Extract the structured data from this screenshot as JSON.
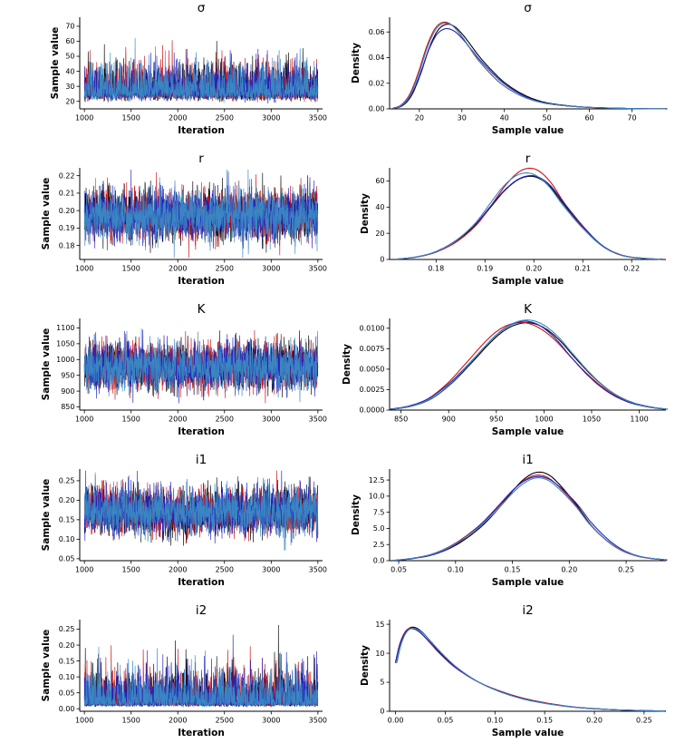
{
  "figure": {
    "background": "#ffffff",
    "chain_colors": [
      "#000000",
      "#cc1111",
      "#2222bb",
      "#3a85c2"
    ],
    "chains": 4,
    "trace_points": 1250
  },
  "chart_data": [
    {
      "param": "σ",
      "trace": {
        "type": "line",
        "title": "σ",
        "xlabel": "Iteration",
        "ylabel": "Sample value",
        "xlim": [
          950,
          3550
        ],
        "ylim": [
          15,
          76
        ],
        "xticks": [
          "1000",
          "1500",
          "2000",
          "2500",
          "3000",
          "3500"
        ],
        "yticks": [
          "20",
          "30",
          "40",
          "50",
          "60",
          "70"
        ],
        "gen": {
          "x_start": 1000,
          "x_end": 3500,
          "center": 26,
          "left_sd": 3.6,
          "left_soft": 0.22,
          "right_sd": 9.0,
          "right_soft": 0.06,
          "clip_min": 16.0,
          "clip_max": 74.0
        }
      },
      "density": {
        "type": "line",
        "title": "σ",
        "xlabel": "Sample value",
        "ylabel": "Density",
        "xlim": [
          13,
          78
        ],
        "ylim": [
          0,
          0.0715
        ],
        "xticks": [
          "20",
          "30",
          "40",
          "50",
          "60",
          "70"
        ],
        "yticks": [
          "0.00",
          "0.02",
          "0.04",
          "0.06"
        ],
        "curve_x": [
          14,
          16,
          18,
          20,
          22,
          24,
          26,
          28,
          30,
          32,
          34,
          37,
          40,
          44,
          48,
          52,
          57,
          62,
          68,
          74,
          78
        ],
        "curve_y": [
          0.0005,
          0.003,
          0.011,
          0.027,
          0.047,
          0.061,
          0.066,
          0.064,
          0.057,
          0.048,
          0.039,
          0.028,
          0.019,
          0.011,
          0.006,
          0.0035,
          0.0018,
          0.0009,
          0.0004,
          0.0001,
          5e-05
        ]
      }
    },
    {
      "param": "r",
      "trace": {
        "type": "line",
        "title": "r",
        "xlabel": "Iteration",
        "ylabel": "Sample value",
        "xlim": [
          950,
          3550
        ],
        "ylim": [
          0.172,
          0.2245
        ],
        "xticks": [
          "1000",
          "1500",
          "2000",
          "2500",
          "3000",
          "3500"
        ],
        "yticks": [
          "0.18",
          "0.19",
          "0.20",
          "0.21",
          "0.22"
        ],
        "gen": {
          "x_start": 1000,
          "x_end": 3500,
          "center": 0.1972,
          "left_sd": 0.0078,
          "left_soft": 0.05,
          "right_sd": 0.0075,
          "right_soft": 0.0,
          "clip_min": 0.173,
          "clip_max": 0.2235
        }
      },
      "density": {
        "type": "line",
        "title": "r",
        "xlabel": "Sample value",
        "ylabel": "Density",
        "xlim": [
          0.1705,
          0.227
        ],
        "ylim": [
          0,
          70
        ],
        "xticks": [
          "0.18",
          "0.19",
          "0.20",
          "0.21",
          "0.22"
        ],
        "yticks": [
          "0",
          "20",
          "40",
          "60"
        ],
        "curve_x": [
          0.172,
          0.176,
          0.18,
          0.184,
          0.188,
          0.191,
          0.194,
          0.197,
          0.2,
          0.203,
          0.206,
          0.21,
          0.214,
          0.218,
          0.2225,
          0.226
        ],
        "curve_y": [
          0.3,
          2,
          6,
          14,
          27,
          41,
          55,
          64,
          65,
          57,
          42,
          24,
          10,
          3,
          0.8,
          0.2
        ]
      }
    },
    {
      "param": "K",
      "trace": {
        "type": "line",
        "title": "K",
        "xlabel": "Iteration",
        "ylabel": "Sample value",
        "xlim": [
          950,
          3550
        ],
        "ylim": [
          840,
          1130
        ],
        "xticks": [
          "1000",
          "1500",
          "2000",
          "2500",
          "3000",
          "3500"
        ],
        "yticks": [
          "850",
          "900",
          "950",
          "1000",
          "1050",
          "1100"
        ],
        "gen": {
          "x_start": 1000,
          "x_end": 3500,
          "center": 978,
          "left_sd": 42,
          "left_soft": 0.06,
          "right_sd": 37,
          "right_soft": 0.01,
          "clip_min": 842,
          "clip_max": 1126
        }
      },
      "density": {
        "type": "line",
        "title": "K",
        "xlabel": "Sample value",
        "ylabel": "Density",
        "xlim": [
          838,
          1128
        ],
        "ylim": [
          0,
          0.0112
        ],
        "xticks": [
          "850",
          "900",
          "950",
          "1000",
          "1050",
          "1100"
        ],
        "yticks": [
          "0.0000",
          "0.0025",
          "0.0050",
          "0.0075",
          "0.0100"
        ],
        "curve_x": [
          840,
          860,
          880,
          900,
          920,
          940,
          955,
          970,
          985,
          1000,
          1015,
          1030,
          1050,
          1070,
          1090,
          1110,
          1128
        ],
        "curve_y": [
          0.0001,
          0.0005,
          0.0014,
          0.0032,
          0.0056,
          0.0081,
          0.0096,
          0.0104,
          0.0105,
          0.0098,
          0.0084,
          0.0065,
          0.0041,
          0.0022,
          0.001,
          0.0004,
          0.0001
        ]
      }
    },
    {
      "param": "i1",
      "trace": {
        "type": "line",
        "title": "i1",
        "xlabel": "Iteration",
        "ylabel": "Sample value",
        "xlim": [
          950,
          3550
        ],
        "ylim": [
          0.045,
          0.28
        ],
        "xticks": [
          "1000",
          "1500",
          "2000",
          "2500",
          "3000",
          "3500"
        ],
        "yticks": [
          "0.05",
          "0.10",
          "0.15",
          "0.20",
          "0.25"
        ],
        "gen": {
          "x_start": 1000,
          "x_end": 3500,
          "center": 0.173,
          "left_sd": 0.035,
          "left_soft": 0.08,
          "right_sd": 0.03,
          "right_soft": 0.01,
          "clip_min": 0.047,
          "clip_max": 0.276
        }
      },
      "density": {
        "type": "line",
        "title": "i1",
        "xlabel": "Sample value",
        "ylabel": "Density",
        "xlim": [
          0.042,
          0.285
        ],
        "ylim": [
          0,
          14.2
        ],
        "xticks": [
          "0.05",
          "0.10",
          "0.15",
          "0.20",
          "0.25"
        ],
        "yticks": [
          "0.0",
          "2.5",
          "5.0",
          "7.5",
          "10.0",
          "12.5"
        ],
        "curve_x": [
          0.045,
          0.06,
          0.08,
          0.1,
          0.12,
          0.135,
          0.15,
          0.16,
          0.17,
          0.18,
          0.19,
          0.205,
          0.22,
          0.24,
          0.26,
          0.285
        ],
        "curve_y": [
          0.05,
          0.3,
          1.0,
          2.6,
          5.2,
          7.8,
          10.8,
          12.4,
          13.2,
          12.9,
          11.5,
          8.6,
          5.2,
          2.2,
          0.7,
          0.1
        ]
      }
    },
    {
      "param": "i2",
      "trace": {
        "type": "line",
        "title": "i2",
        "xlabel": "Iteration",
        "ylabel": "Sample value",
        "xlim": [
          950,
          3550
        ],
        "ylim": [
          -0.008,
          0.28
        ],
        "xticks": [
          "1000",
          "1500",
          "2000",
          "2500",
          "3000",
          "3500"
        ],
        "yticks": [
          "0.00",
          "0.05",
          "0.10",
          "0.15",
          "0.20",
          "0.25"
        ],
        "gen": {
          "x_start": 1000,
          "x_end": 3500,
          "center": 0.02,
          "left_sd": 0.012,
          "left_soft": 0.5,
          "right_sd": 0.045,
          "right_soft": 0.08,
          "clip_min": 0.0005,
          "clip_max": 0.272
        }
      },
      "density": {
        "type": "line",
        "title": "i2",
        "xlabel": "Sample value",
        "ylabel": "Density",
        "xlim": [
          -0.006,
          0.272
        ],
        "ylim": [
          0,
          15.8
        ],
        "xticks": [
          "0.00",
          "0.05",
          "0.10",
          "0.15",
          "0.20",
          "0.25"
        ],
        "yticks": [
          "0",
          "5",
          "10",
          "15"
        ],
        "curve_x": [
          0.0,
          0.004,
          0.009,
          0.014,
          0.02,
          0.027,
          0.035,
          0.045,
          0.06,
          0.08,
          0.1,
          0.125,
          0.15,
          0.18,
          0.21,
          0.24,
          0.27
        ],
        "curve_y": [
          8.5,
          11.5,
          13.6,
          14.4,
          14.3,
          13.4,
          11.9,
          10.0,
          7.6,
          5.3,
          3.7,
          2.3,
          1.4,
          0.7,
          0.35,
          0.15,
          0.05
        ]
      }
    }
  ]
}
